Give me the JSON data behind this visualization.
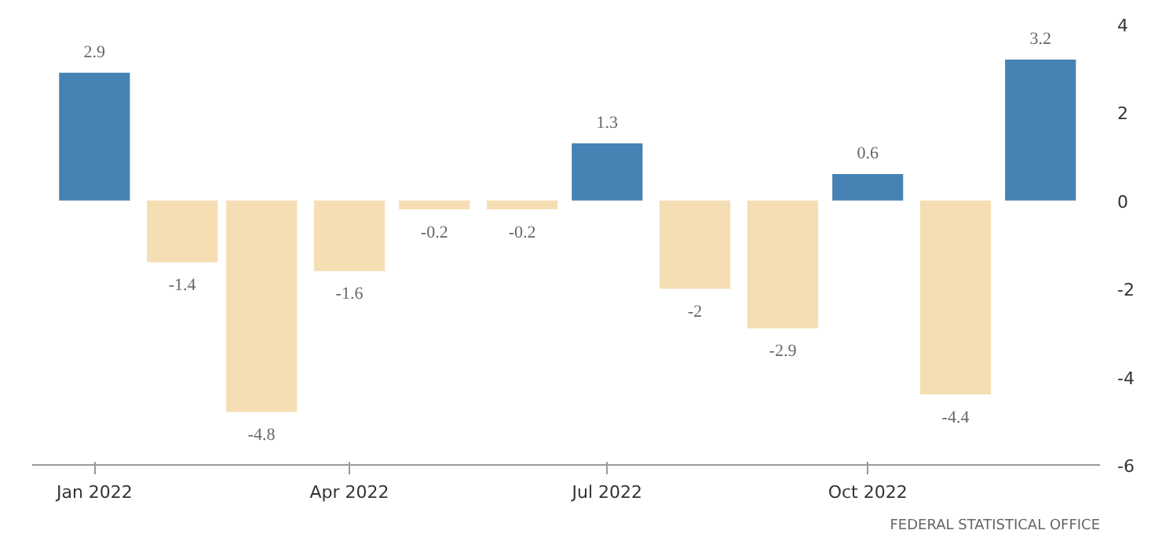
{
  "chart_data": {
    "type": "bar",
    "x": [
      "2022-01",
      "2022-02",
      "2022-03",
      "2022-04",
      "2022-05",
      "2022-06",
      "2022-07",
      "2022-08",
      "2022-09",
      "2022-10",
      "2022-11",
      "2022-12"
    ],
    "values": [
      2.9,
      -1.4,
      -4.8,
      -1.6,
      -0.2,
      -0.2,
      1.3,
      -2,
      -2.9,
      0.6,
      -4.4,
      3.2
    ],
    "colors": [
      "#4682b4",
      "#f5deb3",
      "#f5deb3",
      "#f5deb3",
      "#f5deb3",
      "#f5deb3",
      "#4682b4",
      "#f5deb3",
      "#f5deb3",
      "#4682b4",
      "#f5deb3",
      "#4682b4"
    ],
    "data_labels": true,
    "xlim": [
      "2021-12-10",
      "2022-12-22"
    ],
    "xticks": [
      {
        "value": "2022-01",
        "label": "Jan 2022"
      },
      {
        "value": "2022-04",
        "label": "Apr 2022"
      },
      {
        "value": "2022-07",
        "label": "Jul 2022"
      },
      {
        "value": "2022-10",
        "label": "Oct 2022"
      }
    ],
    "ylim": [
      -6,
      4
    ],
    "yticks": [
      -6,
      -4,
      -2,
      0,
      2,
      4
    ],
    "annotations": [
      "FEDERAL STATISTICAL OFFICE"
    ]
  }
}
